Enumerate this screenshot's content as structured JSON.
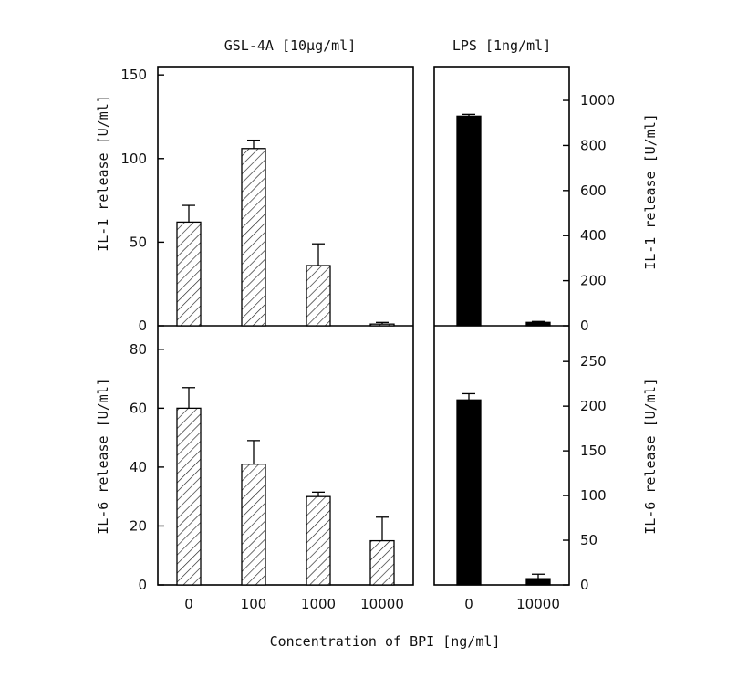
{
  "chart_data": [
    {
      "type": "bar",
      "panel": "top-left",
      "title": "GSL-4A [10µg/ml]",
      "ylabel": "IL-1 release [U/ml]",
      "categories": [
        "0",
        "100",
        "1000",
        "10000"
      ],
      "values": [
        62,
        106,
        36,
        1
      ],
      "errors": [
        10,
        5,
        13,
        1
      ],
      "ylim": [
        0,
        155
      ],
      "yticks": [
        "0",
        "50",
        "100",
        "150"
      ],
      "fill": "hatched"
    },
    {
      "type": "bar",
      "panel": "top-right",
      "title": "LPS [1ng/ml]",
      "ylabel": "IL-1 release [U/ml]",
      "categories": [
        "0",
        "10000"
      ],
      "values": [
        930,
        15
      ],
      "errors": [
        8,
        4
      ],
      "ylim": [
        0,
        1150
      ],
      "yticks": [
        "0",
        "200",
        "400",
        "600",
        "800",
        "1000"
      ],
      "fill": "solid"
    },
    {
      "type": "bar",
      "panel": "bottom-left",
      "ylabel": "IL-6 release [U/ml]",
      "categories": [
        "0",
        "100",
        "1000",
        "10000"
      ],
      "values": [
        60,
        41,
        30,
        15
      ],
      "errors": [
        7,
        8,
        1.5,
        8
      ],
      "ylim": [
        0,
        88
      ],
      "yticks": [
        "0",
        "20",
        "40",
        "60",
        "80"
      ],
      "fill": "hatched"
    },
    {
      "type": "bar",
      "panel": "bottom-right",
      "ylabel": "IL-6 release [U/ml]",
      "categories": [
        "0",
        "10000"
      ],
      "values": [
        207,
        7
      ],
      "errors": [
        7,
        5
      ],
      "ylim": [
        0,
        290
      ],
      "yticks": [
        "0",
        "50",
        "100",
        "150",
        "200",
        "250"
      ],
      "fill": "solid"
    }
  ],
  "xlabel": "Concentration of BPI [ng/ml]",
  "x_ticks_left": [
    "0",
    "100",
    "1000",
    "10000"
  ],
  "x_ticks_right": [
    "0",
    "10000"
  ]
}
